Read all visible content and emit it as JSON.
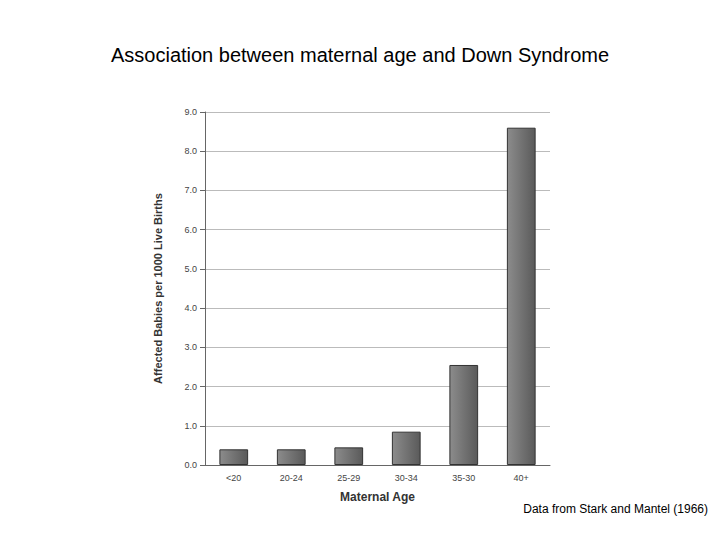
{
  "chart_data": {
    "type": "bar",
    "title": "Association between maternal age and Down Syndrome",
    "x_label": "Maternal Age",
    "y_label": "Affected Babies per 1000 Live Births",
    "annotation": "Data from Stark and Mantel (1966)",
    "categories": [
      "<20",
      "20-24",
      "25-29",
      "30-34",
      "35-30",
      "40+"
    ],
    "values": [
      0.4,
      0.4,
      0.45,
      0.85,
      2.55,
      8.6
    ],
    "color": "#8c8c8c",
    "ylim": [
      0,
      9
    ],
    "yticks": [
      {
        "value": 0,
        "label": "0.0"
      },
      {
        "value": 1,
        "label": "1.0"
      },
      {
        "value": 2,
        "label": "2.0"
      },
      {
        "value": 3,
        "label": "3.0"
      },
      {
        "value": 4,
        "label": "4.0"
      },
      {
        "value": 5,
        "label": "5.0"
      },
      {
        "value": 6,
        "label": "6.0"
      },
      {
        "value": 7,
        "label": "7.0"
      },
      {
        "value": 8,
        "label": "8.0"
      },
      {
        "value": 9,
        "label": "9.0"
      }
    ],
    "grid": true
  }
}
